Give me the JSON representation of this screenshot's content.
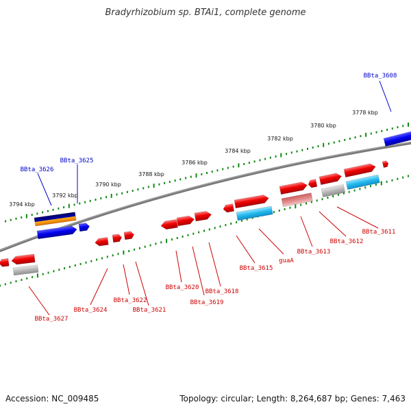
{
  "title": "Bradyrhizobium sp. BTAi1, complete genome",
  "footer": {
    "accession": "Accession: NC_009485",
    "topology": "Topology: circular; Length: 8,264,687 bp; Genes: 7,463"
  },
  "colors": {
    "forward_gene": "#ee0000",
    "reverse_gene": "#0000ee",
    "feature_blue": "#22b8ee",
    "feature_pink": "#e08080",
    "feature_gray": "#b0b0b0",
    "backbone": "#777777",
    "tick": "#118811",
    "label_blue": "#0000cc",
    "label_red": "#cc0000"
  },
  "scale_labels": [
    "3778 kbp",
    "3780 kbp",
    "3782 kbp",
    "3784 kbp",
    "3786 kbp",
    "3788 kbp",
    "3790 kbp",
    "3792 kbp",
    "3794 kbp"
  ],
  "gene_labels_top": [
    "BBta_3608",
    "BBta_3625",
    "BBta_3626"
  ],
  "gene_labels_bottom": [
    "BBta_3611",
    "BBta_3612",
    "BBta_3613",
    "guaA",
    "BBta_3615",
    "BBta_3618",
    "BBta_3619",
    "BBta_3620",
    "BBta_3621",
    "BBta_3622",
    "BBta_3624",
    "BBta_3627"
  ]
}
